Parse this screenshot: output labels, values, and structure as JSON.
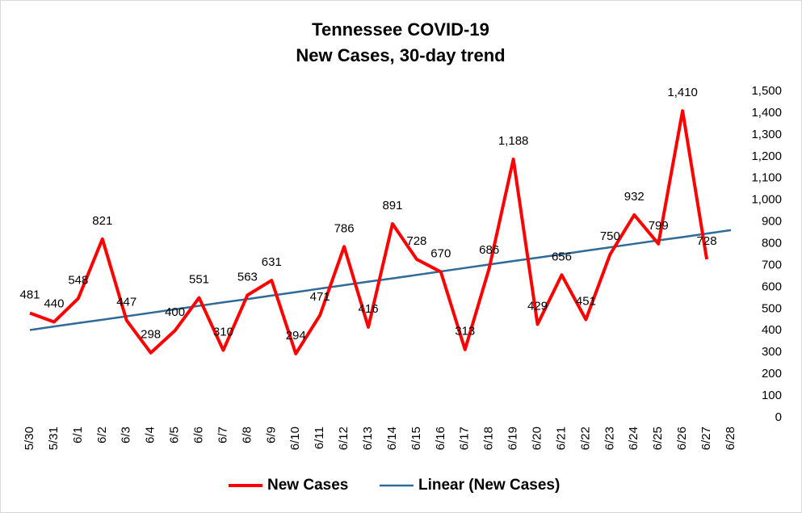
{
  "chart_data": {
    "type": "line",
    "title": "Tennessee COVID-19",
    "subtitle": "New Cases, 30-day trend",
    "categories": [
      "5/30",
      "5/31",
      "6/1",
      "6/2",
      "6/3",
      "6/4",
      "6/5",
      "6/6",
      "6/7",
      "6/8",
      "6/9",
      "6/10",
      "6/11",
      "6/12",
      "6/13",
      "6/14",
      "6/15",
      "6/16",
      "6/17",
      "6/18",
      "6/19",
      "6/20",
      "6/21",
      "6/22",
      "6/23",
      "6/24",
      "6/25",
      "6/26",
      "6/27",
      "6/28"
    ],
    "series": [
      {
        "name": "New Cases",
        "color": "#ff0000",
        "values": [
          481,
          440,
          548,
          821,
          447,
          298,
          400,
          551,
          310,
          563,
          631,
          294,
          471,
          786,
          416,
          891,
          728,
          670,
          313,
          686,
          1188,
          429,
          656,
          451,
          750,
          932,
          799,
          1410,
          728,
          null
        ],
        "value_labels": [
          "481",
          "440",
          "548",
          "821",
          "447",
          "298",
          "400",
          "551",
          "310",
          "563",
          "631",
          "294",
          "471",
          "786",
          "416",
          "891",
          "728",
          "670",
          "313",
          "686",
          "1,188",
          "429",
          "656",
          "451",
          "750",
          "932",
          "799",
          "1,410",
          "728",
          null
        ]
      },
      {
        "name": "Linear (New Cases)",
        "color": "#2e6b99",
        "values": [
          403,
          419,
          435,
          450,
          466,
          482,
          498,
          514,
          530,
          545,
          561,
          577,
          593,
          609,
          625,
          640,
          656,
          672,
          688,
          704,
          720,
          735,
          751,
          767,
          783,
          799,
          815,
          830,
          846,
          862
        ]
      }
    ],
    "ylim": [
      0,
      1500
    ],
    "yticks": [
      0,
      100,
      200,
      300,
      400,
      500,
      600,
      700,
      800,
      900,
      {
        "value": 1000,
        "label": "1,000"
      },
      {
        "value": 1100,
        "label": "1,100"
      },
      {
        "value": 1200,
        "label": "1,200"
      },
      {
        "value": 1300,
        "label": "1,300"
      },
      {
        "value": 1400,
        "label": "1,400"
      },
      {
        "value": 1500,
        "label": "1,500"
      }
    ],
    "y_axis_side": "right",
    "grid": false,
    "legend": "bottom"
  }
}
